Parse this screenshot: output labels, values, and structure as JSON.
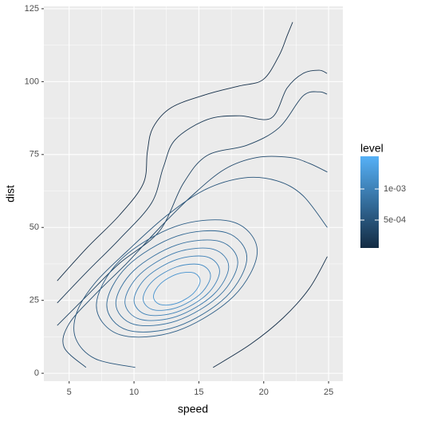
{
  "chart_data": {
    "type": "contour",
    "x_label": "speed",
    "y_label": "dist",
    "xlim": [
      3.05,
      26.1
    ],
    "ylim": [
      -2.7,
      125.8
    ],
    "xticks": [
      5,
      10,
      15,
      20,
      25
    ],
    "yticks": [
      0,
      25,
      50,
      75,
      100,
      125
    ],
    "xminor": [
      7.5,
      12.5,
      17.5,
      22.5
    ],
    "yminor": [
      12.5,
      37.5,
      62.5,
      87.5,
      112.5
    ],
    "grid": true,
    "legend": {
      "title": "level",
      "low": "#132B43",
      "high": "#56B1F7",
      "lim": [
        5.13e-05,
        0.001526
      ],
      "ticks": [
        {
          "value": 0.0005,
          "label": "5e-04"
        },
        {
          "value": 0.001,
          "label": "1e-03"
        }
      ]
    },
    "series": [
      {
        "level": 0.0001,
        "x": [
          4.08,
          6.42,
          8.88,
          10.72,
          11.03,
          11.46,
          12.88,
          15.65,
          18.11,
          19.95,
          21.18,
          21.8,
          22.23
        ],
        "y": [
          31.7,
          43.2,
          54.2,
          65.1,
          76.0,
          84.2,
          91.1,
          95.7,
          98.5,
          100.7,
          108.9,
          115.7,
          120.4
        ]
      },
      {
        "level": 0.0001,
        "x": [
          16.1,
          19,
          21.5,
          23.5,
          24.9
        ],
        "y": [
          2,
          10,
          19,
          29,
          40
        ]
      },
      {
        "level": 0.0002,
        "x": [
          4.08,
          6.42,
          8.88,
          11.34,
          12.26,
          13.18,
          15.65,
          18.11,
          20.57,
          21.8,
          23.03,
          24.26,
          24.88
        ],
        "y": [
          24.1,
          35.0,
          46.0,
          58.3,
          70.6,
          80.1,
          87.0,
          88.3,
          87.5,
          97.8,
          102.8,
          103.9,
          102.8
        ]
      },
      {
        "level": 0.0003,
        "x": [
          4.08,
          6.42,
          8.88,
          11.95,
          13.8,
          15.65,
          18.72,
          21.18,
          23.03,
          24.26,
          24.88
        ],
        "y": [
          16.4,
          26.8,
          37.7,
          48.7,
          65.1,
          74.7,
          78.2,
          84.2,
          95.1,
          96.5,
          95.7
        ]
      },
      {
        "level": 0.0004,
        "x": [
          6.3,
          4.6,
          5,
          7,
          9.5,
          12,
          14.5,
          17,
          19.5,
          22,
          23.5,
          24.9
        ],
        "y": [
          2,
          9,
          17,
          27,
          38,
          50,
          61,
          70,
          74,
          74,
          72,
          69
        ]
      },
      {
        "level": 0.0005,
        "x": [
          10.1,
          7,
          5.5,
          5.6,
          7,
          9.5,
          12.5,
          15.5,
          18.5,
          21,
          23,
          24.9
        ],
        "y": [
          2,
          5,
          12,
          21,
          31,
          42,
          54,
          63,
          67,
          66,
          61,
          50
        ]
      },
      {
        "level": 0.0006,
        "x": [
          19.5,
          17.68,
          13.3,
          8.92,
          7.1,
          8.92,
          13.3,
          17.68,
          19.5
        ],
        "y": [
          41.8,
          51.8,
          50.5,
          38.7,
          23.2,
          13.2,
          14.5,
          26.4,
          41.8
        ]
      },
      {
        "level": 0.0007,
        "x": [
          18.7,
          17.12,
          13.3,
          9.48,
          7.9,
          9.48,
          13.3,
          17.12,
          18.7
        ],
        "y": [
          39.6,
          48.2,
          47,
          36.7,
          23.4,
          14.8,
          16,
          26.3,
          39.6
        ]
      },
      {
        "level": 0.0008,
        "x": [
          18,
          16.62,
          13.3,
          9.98,
          8.6,
          9.98,
          13.3,
          16.62,
          18
        ],
        "y": [
          38.1,
          45.2,
          44,
          35.2,
          24,
          16.8,
          18,
          26.8,
          38.1
        ]
      },
      {
        "level": 0.0009,
        "x": [
          17.3,
          16.13,
          13.3,
          10.47,
          9.3,
          10.47,
          13.3,
          16.13,
          17.3
        ],
        "y": [
          36.5,
          42.5,
          41.5,
          34,
          24.5,
          18.5,
          19.5,
          27,
          36.5
        ]
      },
      {
        "level": 0.001,
        "x": [
          16.6,
          15.63,
          13.3,
          10.97,
          10,
          10.97,
          13.3,
          15.63,
          16.6
        ],
        "y": [
          35,
          39.9,
          39,
          32.9,
          25,
          20.1,
          21,
          27.1,
          35
        ]
      },
      {
        "level": 0.0011,
        "x": [
          15.9,
          15.14,
          13.3,
          11.46,
          10.7,
          11.46,
          13.3,
          15.14,
          15.9
        ],
        "y": [
          33.4,
          37.2,
          36.5,
          31.7,
          25.6,
          21.8,
          22.5,
          27.3,
          33.4
        ]
      },
      {
        "level": 0.0012,
        "x": [
          15.1,
          14.57,
          13.3,
          12.03,
          11.5,
          12.03,
          13.3,
          14.57,
          15.1
        ],
        "y": [
          31.7,
          34.45,
          34,
          30.63,
          26.3,
          23.55,
          24,
          27.37,
          31.7
        ]
      }
    ]
  }
}
